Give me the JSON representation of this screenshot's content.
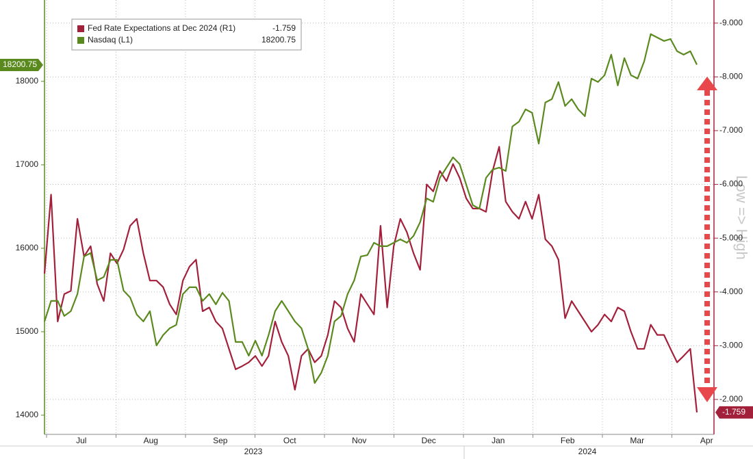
{
  "chart_data": {
    "type": "line",
    "months": [
      "Jul",
      "Aug",
      "Sep",
      "Oct",
      "Nov",
      "Dec",
      "Jan",
      "Feb",
      "Mar",
      "Apr"
    ],
    "years": [
      "2023",
      "2024"
    ],
    "series": [
      {
        "name": "Fed Rate Expectations at Dec 2024 (R1)",
        "color": "#a3203a",
        "axis": "y2",
        "values": [
          -4.34,
          -5.81,
          -3.45,
          -3.96,
          -4.02,
          -5.36,
          -4.66,
          -4.85,
          -4.15,
          -3.83,
          -4.72,
          -4.53,
          -4.79,
          -5.23,
          -5.36,
          -4.72,
          -4.21,
          -4.21,
          -4.09,
          -3.77,
          -3.58,
          -4.21,
          -4.47,
          -4.6,
          -3.64,
          -3.71,
          -3.45,
          -3.32,
          -2.94,
          -2.56,
          -2.62,
          -2.69,
          -2.81,
          -2.62,
          -2.81,
          -3.45,
          -3.07,
          -2.81,
          -2.18,
          -2.81,
          -2.94,
          -2.69,
          -2.81,
          -3.2,
          -3.83,
          -3.71,
          -3.32,
          -3.07,
          -3.96,
          -3.77,
          -3.58,
          -5.23,
          -3.71,
          -4.85,
          -5.36,
          -5.11,
          -4.72,
          -4.41,
          -6.0,
          -5.87,
          -6.25,
          -6.06,
          -6.38,
          -6.12,
          -5.74,
          -5.55,
          -5.55,
          -5.49,
          -6.25,
          -6.7,
          -5.68,
          -5.49,
          -5.36,
          -5.68,
          -5.36,
          -5.81,
          -4.98,
          -4.85,
          -4.6,
          -3.51,
          -3.83,
          -3.64,
          -3.45,
          -3.26,
          -3.39,
          -3.58,
          -3.45,
          -3.71,
          -3.64,
          -3.26,
          -2.94,
          -2.94,
          -3.39,
          -3.2,
          -3.2,
          -2.94,
          -2.69,
          -2.81,
          -2.94,
          -1.759
        ]
      },
      {
        "name": "Nasdaq (L1)",
        "color": "#5a8a1e",
        "axis": "y",
        "values": [
          15123,
          15369,
          15369,
          15189,
          15246,
          15451,
          15902,
          15943,
          15615,
          15656,
          15861,
          15861,
          15492,
          15410,
          15205,
          15123,
          15246,
          14836,
          14959,
          15041,
          15082,
          15451,
          15533,
          15533,
          15369,
          15451,
          15328,
          15467,
          15369,
          14877,
          14877,
          14713,
          14893,
          14713,
          14959,
          15246,
          15369,
          15246,
          15123,
          15041,
          14795,
          14385,
          14508,
          14713,
          15123,
          15189,
          15451,
          15615,
          15902,
          15918,
          16066,
          16025,
          16025,
          16066,
          16107,
          16066,
          16148,
          16312,
          16598,
          16557,
          16844,
          16967,
          17090,
          17008,
          16762,
          16516,
          16475,
          16844,
          16943,
          16967,
          16926,
          17459,
          17517,
          17664,
          17623,
          17254,
          17746,
          17787,
          17992,
          17705,
          17787,
          17664,
          17582,
          18033,
          17992,
          18074,
          18320,
          17951,
          18279,
          18074,
          18033,
          18238,
          18566,
          18525,
          18484,
          18508,
          18361,
          18320,
          18361,
          18200.75
        ]
      }
    ],
    "ylim": [
      13770,
      18975
    ],
    "yticks": [
      14000,
      15000,
      16000,
      17000,
      18000
    ],
    "y2lim": [
      -1.35,
      -9.43
    ],
    "y2ticks": [
      {
        "value": -9,
        "label": "-9.000"
      },
      {
        "value": -8,
        "label": "-8.000"
      },
      {
        "value": -7,
        "label": "-7.000"
      },
      {
        "value": -6,
        "label": "-6.000"
      },
      {
        "value": -5,
        "label": "-5.000"
      },
      {
        "value": -4,
        "label": "-4.000"
      },
      {
        "value": -3,
        "label": "-3.000"
      },
      {
        "value": -2,
        "label": "-2.000"
      }
    ],
    "y2_annotation": "Low => High",
    "grid": true,
    "legend": "top-left"
  }
}
